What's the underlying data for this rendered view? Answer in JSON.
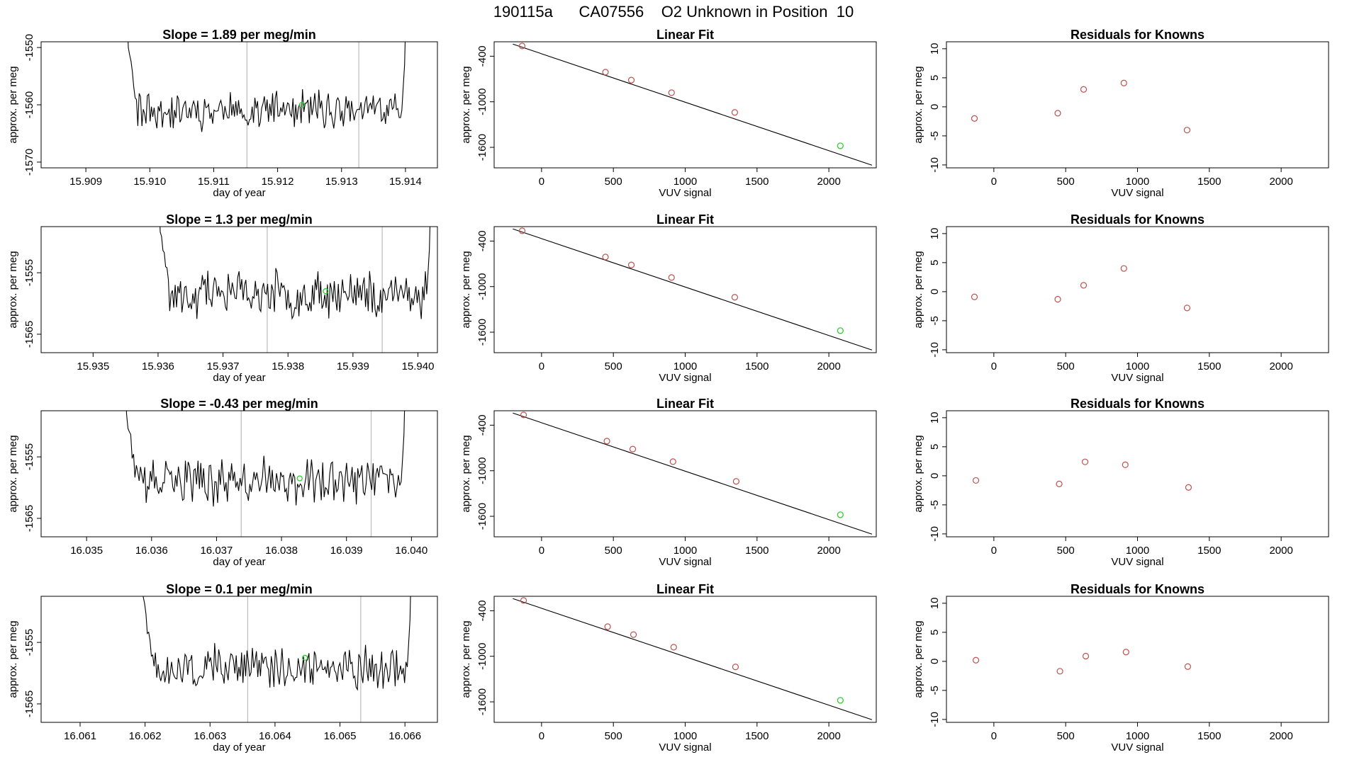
{
  "header": {
    "title": "190115a      CA07556    O2 Unknown in Position  10"
  },
  "colors": {
    "known": "#c0504d",
    "unknown": "#33cc33",
    "line": "#000000",
    "vline": "#bbbbbb"
  },
  "chart_data": [
    {
      "type": "line",
      "panel": "timeseries",
      "title": "Slope =  1.89  per meg/min",
      "xlabel": "day of year",
      "ylabel": "approx. per meg",
      "xlim": [
        15.9083,
        15.9145
      ],
      "ylim": [
        -1571,
        -1549
      ],
      "xticks": [
        "15.909",
        "15.910",
        "15.911",
        "15.912",
        "15.913",
        "15.914"
      ],
      "xtick_values": [
        15.909,
        15.91,
        15.911,
        15.912,
        15.913,
        15.914
      ],
      "yticks": [
        "-1550",
        "-1560",
        "-1570"
      ],
      "ytick_values": [
        -1550,
        -1560,
        -1570
      ],
      "x_start": 15.9096,
      "x_end": 15.91405,
      "n_points": 210,
      "baseline": -1561,
      "noise": 2.6,
      "seed": 11,
      "vlines": [
        15.91152,
        15.91327
      ],
      "unknown_point": [
        15.91238,
        -1560
      ]
    },
    {
      "type": "scatter",
      "panel": "fit",
      "title": "Linear Fit",
      "xlabel": "VUV signal",
      "ylabel": "approx. per meg",
      "xlim": [
        -330,
        2330
      ],
      "ylim": [
        -1870,
        -210
      ],
      "xticks": [
        "0",
        "500",
        "1000",
        "1500",
        "2000"
      ],
      "xtick_values": [
        0,
        500,
        1000,
        1500,
        2000
      ],
      "yticks": [
        "-400",
        "-1000",
        "-1600"
      ],
      "ytick_values": [
        -400,
        -1000,
        -1600
      ],
      "line": [
        [
          -200,
          -240
        ],
        [
          2300,
          -1835
        ]
      ],
      "knowns": [
        [
          -135,
          -265
        ],
        [
          445,
          -610
        ],
        [
          625,
          -715
        ],
        [
          905,
          -880
        ],
        [
          1345,
          -1140
        ]
      ],
      "unknown": [
        2080,
        -1580
      ]
    },
    {
      "type": "scatter",
      "panel": "residuals",
      "title": "Residuals for Knowns",
      "xlabel": "VUV signal",
      "ylabel": "approx. per meg",
      "xlim": [
        -330,
        2330
      ],
      "ylim": [
        -10.5,
        11.2
      ],
      "xticks": [
        "0",
        "500",
        "1000",
        "1500",
        "2000"
      ],
      "xtick_values": [
        0,
        500,
        1000,
        1500,
        2000
      ],
      "yticks": [
        "10",
        "5",
        "0",
        "-5",
        "-10"
      ],
      "ytick_values": [
        10,
        5,
        0,
        -5,
        -10
      ],
      "points": [
        [
          -135,
          -2
        ],
        [
          445,
          -1.1
        ],
        [
          625,
          3
        ],
        [
          905,
          4.1
        ],
        [
          1345,
          -4
        ]
      ]
    },
    {
      "type": "line",
      "panel": "timeseries",
      "title": "Slope =  1.3  per meg/min",
      "xlabel": "day of year",
      "ylabel": "approx. per meg",
      "xlim": [
        15.9342,
        15.9403
      ],
      "ylim": [
        -1568,
        -1547.5
      ],
      "xticks": [
        "15.935",
        "15.936",
        "15.937",
        "15.938",
        "15.939",
        "15.940"
      ],
      "xtick_values": [
        15.935,
        15.936,
        15.937,
        15.938,
        15.939,
        15.94
      ],
      "yticks": [
        "-1555",
        "-1565"
      ],
      "ytick_values": [
        -1555,
        -1565
      ],
      "x_start": 15.93597,
      "x_end": 15.94024,
      "n_points": 205,
      "baseline": -1558.5,
      "noise": 3,
      "seed": 23,
      "vlines": [
        15.93768,
        15.93945
      ],
      "unknown_point": [
        15.93858,
        -1558
      ]
    },
    {
      "type": "scatter",
      "panel": "fit",
      "title": "Linear Fit",
      "xlabel": "VUV signal",
      "ylabel": "approx. per meg",
      "xlim": [
        -330,
        2330
      ],
      "ylim": [
        -1870,
        -210
      ],
      "xticks": [
        "0",
        "500",
        "1000",
        "1500",
        "2000"
      ],
      "xtick_values": [
        0,
        500,
        1000,
        1500,
        2000
      ],
      "yticks": [
        "-400",
        "-1000",
        "-1600"
      ],
      "ytick_values": [
        -400,
        -1000,
        -1600
      ],
      "line": [
        [
          -200,
          -240
        ],
        [
          2300,
          -1835
        ]
      ],
      "knowns": [
        [
          -135,
          -265
        ],
        [
          445,
          -610
        ],
        [
          625,
          -715
        ],
        [
          905,
          -880
        ],
        [
          1345,
          -1140
        ]
      ],
      "unknown": [
        2080,
        -1580
      ]
    },
    {
      "type": "scatter",
      "panel": "residuals",
      "title": "Residuals for Knowns",
      "xlabel": "VUV signal",
      "ylabel": "approx. per meg",
      "xlim": [
        -330,
        2330
      ],
      "ylim": [
        -10.5,
        11.2
      ],
      "xticks": [
        "0",
        "500",
        "1000",
        "1500",
        "2000"
      ],
      "xtick_values": [
        0,
        500,
        1000,
        1500,
        2000
      ],
      "yticks": [
        "10",
        "5",
        "0",
        "-5",
        "-10"
      ],
      "ytick_values": [
        10,
        5,
        0,
        -5,
        -10
      ],
      "points": [
        [
          -135,
          -0.9
        ],
        [
          445,
          -1.3
        ],
        [
          625,
          1.1
        ],
        [
          905,
          4
        ],
        [
          1345,
          -2.8
        ]
      ]
    },
    {
      "type": "line",
      "panel": "timeseries",
      "title": "Slope =  -0.43  per meg/min",
      "xlabel": "day of year",
      "ylabel": "approx. per meg",
      "xlim": [
        16.0343,
        16.0404
      ],
      "ylim": [
        -1568,
        -1547.5
      ],
      "xticks": [
        "16.035",
        "16.036",
        "16.037",
        "16.038",
        "16.039",
        "16.040"
      ],
      "xtick_values": [
        16.035,
        16.036,
        16.037,
        16.038,
        16.039,
        16.04
      ],
      "yticks": [
        "-1555",
        "-1565"
      ],
      "ytick_values": [
        -1555,
        -1565
      ],
      "x_start": 16.03555,
      "x_end": 16.03995,
      "n_points": 205,
      "baseline": -1559,
      "noise": 2.9,
      "seed": 37,
      "vlines": [
        16.03738,
        16.03938
      ],
      "unknown_point": [
        16.03828,
        -1558.5
      ]
    },
    {
      "type": "scatter",
      "panel": "fit",
      "title": "Linear Fit",
      "xlabel": "VUV signal",
      "ylabel": "approx. per meg",
      "xlim": [
        -330,
        2330
      ],
      "ylim": [
        -1870,
        -210
      ],
      "xticks": [
        "0",
        "500",
        "1000",
        "1500",
        "2000"
      ],
      "xtick_values": [
        0,
        500,
        1000,
        1500,
        2000
      ],
      "yticks": [
        "-400",
        "-1000",
        "-1600"
      ],
      "ytick_values": [
        -400,
        -1000,
        -1600
      ],
      "line": [
        [
          -200,
          -240
        ],
        [
          2300,
          -1835
        ]
      ],
      "knowns": [
        [
          -125,
          -265
        ],
        [
          455,
          -610
        ],
        [
          635,
          -715
        ],
        [
          915,
          -880
        ],
        [
          1355,
          -1140
        ]
      ],
      "unknown": [
        2080,
        -1580
      ]
    },
    {
      "type": "scatter",
      "panel": "residuals",
      "title": "Residuals for Knowns",
      "xlabel": "VUV signal",
      "ylabel": "approx. per meg",
      "xlim": [
        -330,
        2330
      ],
      "ylim": [
        -10.5,
        11.2
      ],
      "xticks": [
        "0",
        "500",
        "1000",
        "1500",
        "2000"
      ],
      "xtick_values": [
        0,
        500,
        1000,
        1500,
        2000
      ],
      "yticks": [
        "10",
        "5",
        "0",
        "-5",
        "-10"
      ],
      "ytick_values": [
        10,
        5,
        0,
        -5,
        -10
      ],
      "points": [
        [
          -125,
          -0.8
        ],
        [
          455,
          -1.4
        ],
        [
          635,
          2.4
        ],
        [
          915,
          1.9
        ],
        [
          1355,
          -2
        ]
      ]
    },
    {
      "type": "line",
      "panel": "timeseries",
      "title": "Slope =  0.1  per meg/min",
      "xlabel": "day of year",
      "ylabel": "approx. per meg",
      "xlim": [
        16.0604,
        16.0665
      ],
      "ylim": [
        -1568,
        -1547.5
      ],
      "xticks": [
        "16.061",
        "16.062",
        "16.063",
        "16.064",
        "16.065",
        "16.066"
      ],
      "xtick_values": [
        16.061,
        16.062,
        16.063,
        16.064,
        16.065,
        16.066
      ],
      "yticks": [
        "-1555",
        "-1565"
      ],
      "ytick_values": [
        -1555,
        -1565
      ],
      "x_start": 16.06191,
      "x_end": 16.06614,
      "n_points": 205,
      "baseline": -1559,
      "noise": 2.7,
      "seed": 51,
      "vlines": [
        16.06358,
        16.06532
      ],
      "unknown_point": [
        16.06446,
        -1557.5
      ]
    },
    {
      "type": "scatter",
      "panel": "fit",
      "title": "Linear Fit",
      "xlabel": "VUV signal",
      "ylabel": "approx. per meg",
      "xlim": [
        -330,
        2330
      ],
      "ylim": [
        -1870,
        -210
      ],
      "xticks": [
        "0",
        "500",
        "1000",
        "1500",
        "2000"
      ],
      "xtick_values": [
        0,
        500,
        1000,
        1500,
        2000
      ],
      "yticks": [
        "-400",
        "-1000",
        "-1600"
      ],
      "ytick_values": [
        -400,
        -1000,
        -1600
      ],
      "line": [
        [
          -200,
          -240
        ],
        [
          2300,
          -1835
        ]
      ],
      "knowns": [
        [
          -125,
          -265
        ],
        [
          460,
          -610
        ],
        [
          640,
          -715
        ],
        [
          920,
          -880
        ],
        [
          1350,
          -1140
        ]
      ],
      "unknown": [
        2080,
        -1580
      ]
    },
    {
      "type": "scatter",
      "panel": "residuals",
      "title": "Residuals for Knowns",
      "xlabel": "VUV signal",
      "ylabel": "approx. per meg",
      "xlim": [
        -330,
        2330
      ],
      "ylim": [
        -10.5,
        11.2
      ],
      "xticks": [
        "0",
        "500",
        "1000",
        "1500",
        "2000"
      ],
      "xtick_values": [
        0,
        500,
        1000,
        1500,
        2000
      ],
      "yticks": [
        "10",
        "5",
        "0",
        "-5",
        "-10"
      ],
      "ytick_values": [
        10,
        5,
        0,
        -5,
        -10
      ],
      "points": [
        [
          -125,
          0.2
        ],
        [
          460,
          -1.7
        ],
        [
          640,
          0.9
        ],
        [
          920,
          1.6
        ],
        [
          1350,
          -0.9
        ]
      ]
    }
  ]
}
